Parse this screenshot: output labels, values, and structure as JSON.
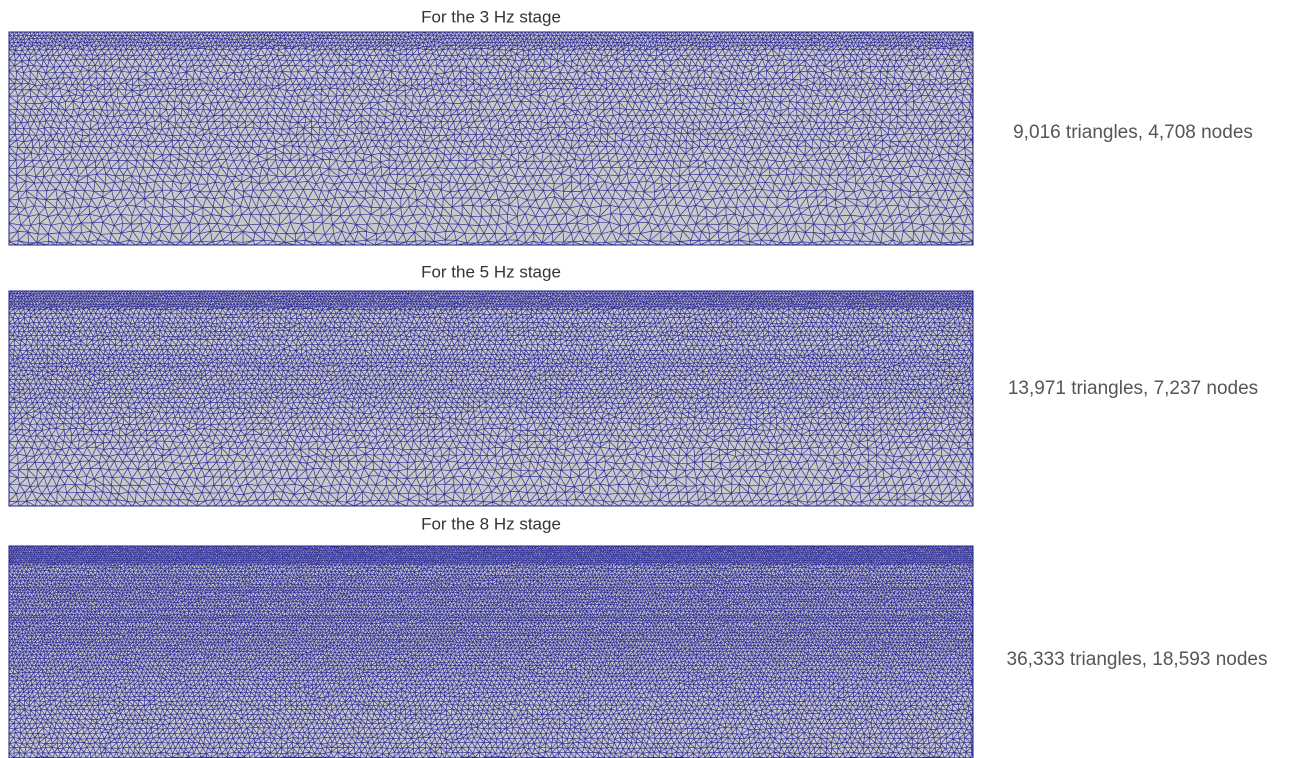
{
  "panels": [
    {
      "title": "For the 3 Hz stage",
      "caption": "9,016 triangles, 4,708 nodes"
    },
    {
      "title": "For the 5 Hz stage",
      "caption": "13,971 triangles, 7,237 nodes"
    },
    {
      "title": "For the 8 Hz stage",
      "caption": "36,333 triangles, 18,593 nodes"
    }
  ]
}
